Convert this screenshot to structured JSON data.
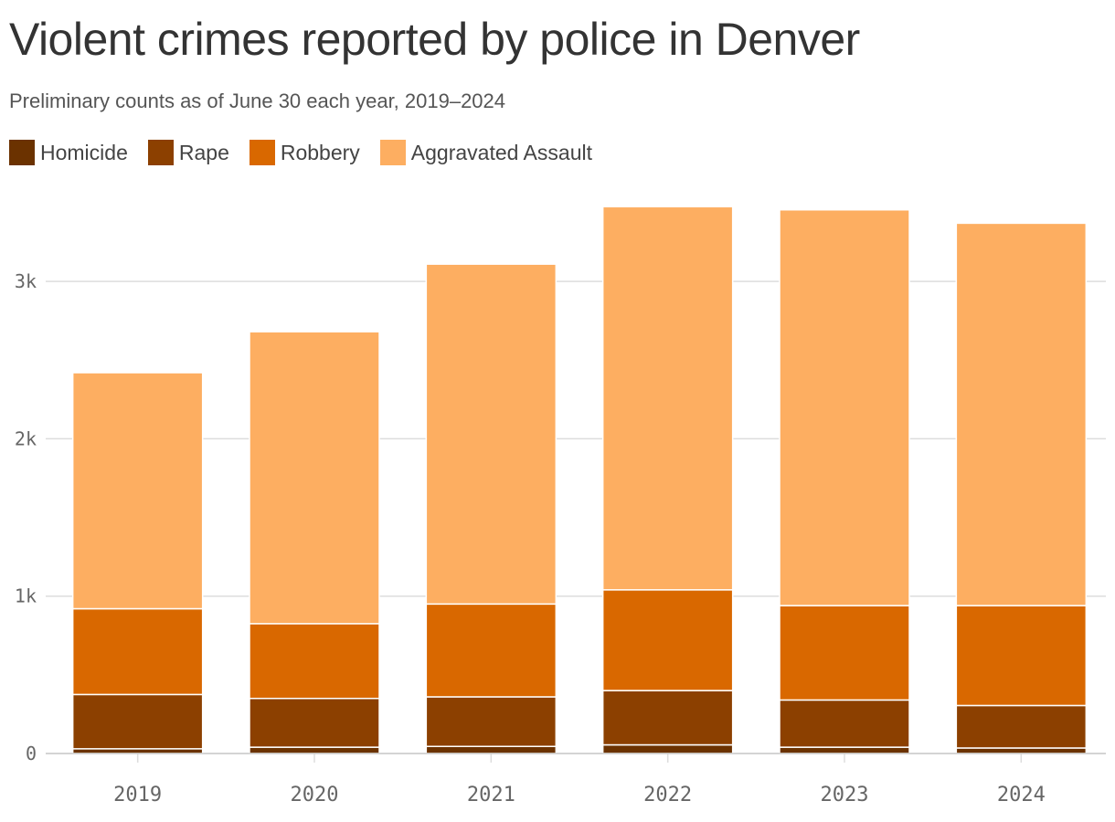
{
  "title": "Violent crimes reported by police in Denver",
  "subtitle": "Preliminary counts as of June 30 each year, 2019–2024",
  "colors": {
    "homicide": "#6b3200",
    "rape": "#8c4000",
    "robbery": "#d96800",
    "aggravated_assault": "#fdae61"
  },
  "chart_data": {
    "type": "bar",
    "stacked": true,
    "categories": [
      "2019",
      "2020",
      "2021",
      "2022",
      "2023",
      "2024"
    ],
    "series": [
      {
        "name": "Homicide",
        "color": "#6b3200",
        "values": [
          30,
          40,
          45,
          55,
          40,
          35
        ]
      },
      {
        "name": "Rape",
        "color": "#8c4000",
        "values": [
          345,
          310,
          315,
          345,
          300,
          270
        ]
      },
      {
        "name": "Robbery",
        "color": "#d96800",
        "values": [
          545,
          475,
          590,
          640,
          600,
          635
        ]
      },
      {
        "name": "Aggravated Assault",
        "color": "#fdae61",
        "values": [
          1500,
          1855,
          2160,
          2435,
          2515,
          2430
        ]
      }
    ],
    "y_ticks": [
      {
        "value": 0,
        "label": "0"
      },
      {
        "value": 1000,
        "label": "1k"
      },
      {
        "value": 2000,
        "label": "2k"
      },
      {
        "value": 3000,
        "label": "3k"
      }
    ],
    "ylim": [
      0,
      3500
    ],
    "grid": true,
    "legend_position": "top-left"
  }
}
